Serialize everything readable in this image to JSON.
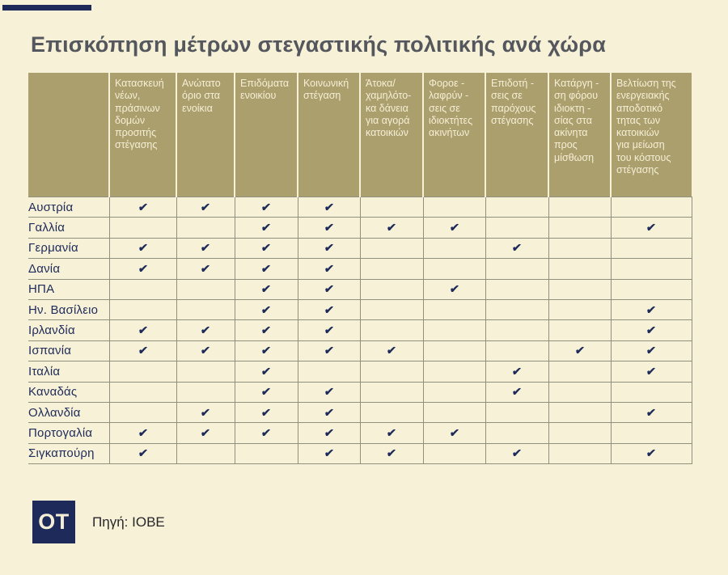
{
  "page": {
    "title": "Επισκόπηση μέτρων στεγαστικής πολιτικής ανά χώρα",
    "logo_text": "OT",
    "source_label": "Πηγή: ΙΟΒΕ"
  },
  "colors": {
    "background": "#f7f2d7",
    "header_gold": "#ab9f6d",
    "navy": "#1e2a5a",
    "title_gray": "#54575d",
    "grid_line": "#90907f",
    "header_text": "#f5efd6"
  },
  "check_glyph": "✔",
  "table": {
    "header_display": [
      "Κατασκευή\nνέων,\nπράσινων\nδομών\nπροσιτής\nστέγασης",
      "Ανώτατο\nόριο στα\nενοίκια",
      "Επιδόματα\nενοικίου",
      "Κοινωνική\nστέγαση",
      "Άτοκα/\nχαμηλότο-\nκα δάνεια\nγια αγορά\nκατοικιών",
      "Φοροε -\nλαφρύν -\nσεις σε\nιδιοκτήτες\nακινήτων",
      "Επιδοτή -\nσεις σε\nπαρόχους\nστέγασης",
      "Κατάργη -\nση φόρου\nιδιοκτη -\nσίας στα\nακίνητα\nπρος\nμίσθωση",
      "Βελτίωση της\nενεργειακής\nαποδοτικό\nτητας των\nκατοικιών\nγια μείωση\nτου κόστους\nστέγασης"
    ]
  },
  "chart_data": {
    "type": "table",
    "title": "Επισκόπηση μέτρων στεγαστικής πολιτικής ανά χώρα",
    "columns": [
      "Κατασκευή νέων, πράσινων δομών προσιτής στέγασης",
      "Ανώτατο όριο στα ενοίκια",
      "Επιδόματα ενοικίου",
      "Κοινωνική στέγαση",
      "Άτοκα/χαμηλότοκα δάνεια για αγορά κατοικιών",
      "Φοροελαφρύνσεις σε ιδιοκτήτες ακινήτων",
      "Επιδοτήσεις σε παρόχους στέγασης",
      "Κατάργηση φόρου ιδιοκτησίας στα ακίνητα προς μίσθωση",
      "Βελτίωση της ενεργειακής αποδοτικότητας των κατοικιών για μείωση του κόστους στέγασης"
    ],
    "rows": [
      {
        "country": "Αυστρία",
        "measures": [
          1,
          1,
          1,
          1,
          0,
          0,
          0,
          0,
          0
        ]
      },
      {
        "country": "Γαλλία",
        "measures": [
          0,
          0,
          1,
          1,
          1,
          1,
          0,
          0,
          1
        ]
      },
      {
        "country": "Γερμανία",
        "measures": [
          1,
          1,
          1,
          1,
          0,
          0,
          1,
          0,
          0
        ]
      },
      {
        "country": "Δανία",
        "measures": [
          1,
          1,
          1,
          1,
          0,
          0,
          0,
          0,
          0
        ]
      },
      {
        "country": "ΗΠΑ",
        "measures": [
          0,
          0,
          1,
          1,
          0,
          1,
          0,
          0,
          0
        ]
      },
      {
        "country": "Ην. Βασίλειο",
        "measures": [
          0,
          0,
          1,
          1,
          0,
          0,
          0,
          0,
          1
        ]
      },
      {
        "country": "Ιρλανδία",
        "measures": [
          1,
          1,
          1,
          1,
          0,
          0,
          0,
          0,
          1
        ]
      },
      {
        "country": "Ισπανία",
        "measures": [
          1,
          1,
          1,
          1,
          1,
          0,
          0,
          1,
          1
        ]
      },
      {
        "country": "Ιταλία",
        "measures": [
          0,
          0,
          1,
          0,
          0,
          0,
          1,
          0,
          1
        ]
      },
      {
        "country": "Καναδάς",
        "measures": [
          0,
          0,
          1,
          1,
          0,
          0,
          1,
          0,
          0
        ]
      },
      {
        "country": "Ολλανδία",
        "measures": [
          0,
          1,
          1,
          1,
          0,
          0,
          0,
          0,
          1
        ]
      },
      {
        "country": "Πορτογαλία",
        "measures": [
          1,
          1,
          1,
          1,
          1,
          1,
          0,
          0,
          0
        ]
      },
      {
        "country": "Σιγκαπούρη",
        "measures": [
          1,
          0,
          0,
          1,
          1,
          0,
          1,
          0,
          1
        ]
      }
    ]
  }
}
